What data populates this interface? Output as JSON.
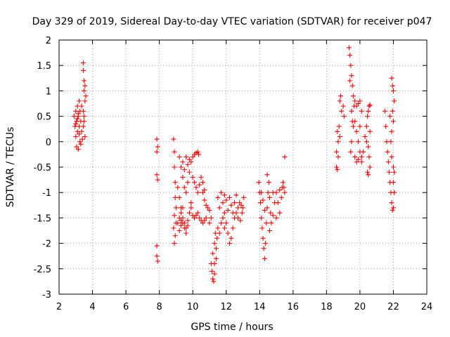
{
  "chart_data": {
    "type": "scatter",
    "title": "Day 329 of 2019, Sidereal Day-to-day VTEC variation (SDTVAR) for receiver p047",
    "xlabel": "GPS time / hours",
    "ylabel": "SDTVAR / TECUs",
    "xlim": [
      2,
      24
    ],
    "ylim": [
      -3,
      2
    ],
    "xticks": [
      "2",
      "4",
      "6",
      "8",
      "10",
      "12",
      "14",
      "16",
      "18",
      "20",
      "22",
      "24"
    ],
    "yticks": [
      "2",
      "1.5",
      "1",
      "0.5",
      "0",
      "-0.5",
      "-1",
      "-1.5",
      "-2",
      "-2.5",
      "-3"
    ],
    "grid": true,
    "marker": "+",
    "color": "#ff0000",
    "series": [
      {
        "name": "SDTVAR",
        "points": [
          [
            2.9,
            0.5
          ],
          [
            2.95,
            0.3
          ],
          [
            3.0,
            0.1
          ],
          [
            3.0,
            0.6
          ],
          [
            3.05,
            0.4
          ],
          [
            3.05,
            -0.1
          ],
          [
            3.1,
            0.2
          ],
          [
            3.1,
            0.7
          ],
          [
            3.15,
            0.5
          ],
          [
            3.15,
            -0.15
          ],
          [
            3.2,
            0.3
          ],
          [
            3.2,
            0.8
          ],
          [
            3.25,
            0.0
          ],
          [
            3.25,
            0.6
          ],
          [
            3.3,
            0.4
          ],
          [
            3.3,
            -0.05
          ],
          [
            3.35,
            0.2
          ],
          [
            3.35,
            0.7
          ],
          [
            3.0,
            0.35
          ],
          [
            3.1,
            0.45
          ],
          [
            3.2,
            0.15
          ],
          [
            3.15,
            0.55
          ],
          [
            3.45,
            1.55
          ],
          [
            3.45,
            1.4
          ],
          [
            3.5,
            1.2
          ],
          [
            3.5,
            1.0
          ],
          [
            3.55,
            0.8
          ],
          [
            3.55,
            1.1
          ],
          [
            3.45,
            0.6
          ],
          [
            3.5,
            0.4
          ],
          [
            3.55,
            0.1
          ],
          [
            3.45,
            0.3
          ],
          [
            3.6,
            0.9
          ],
          [
            3.4,
            0.05
          ],
          [
            3.5,
            0.5
          ],
          [
            7.85,
            0.05
          ],
          [
            7.85,
            -0.2
          ],
          [
            7.9,
            -0.1
          ],
          [
            7.85,
            -0.65
          ],
          [
            7.9,
            -0.75
          ],
          [
            7.85,
            -2.05
          ],
          [
            7.85,
            -2.25
          ],
          [
            7.9,
            -2.35
          ],
          [
            8.85,
            0.05
          ],
          [
            8.9,
            -0.2
          ],
          [
            8.9,
            -0.5
          ],
          [
            8.95,
            -0.8
          ],
          [
            8.95,
            -1.1
          ],
          [
            9.0,
            -1.3
          ],
          [
            9.0,
            -1.6
          ],
          [
            8.95,
            -1.85
          ],
          [
            8.9,
            -2.0
          ],
          [
            8.85,
            -1.7
          ],
          [
            8.9,
            -1.45
          ],
          [
            9.1,
            -0.9
          ],
          [
            9.2,
            -1.1
          ],
          [
            9.3,
            -1.3
          ],
          [
            9.4,
            -1.5
          ],
          [
            9.5,
            -1.6
          ],
          [
            9.6,
            -1.7
          ],
          [
            9.7,
            -1.55
          ],
          [
            9.8,
            -1.4
          ],
          [
            9.9,
            -1.2
          ],
          [
            9.1,
            -1.6
          ],
          [
            9.2,
            -1.5
          ],
          [
            9.3,
            -1.4
          ],
          [
            9.2,
            -1.75
          ],
          [
            9.3,
            -1.65
          ],
          [
            9.4,
            -1.3
          ],
          [
            9.2,
            -0.3
          ],
          [
            9.3,
            -0.5
          ],
          [
            9.4,
            -0.7
          ],
          [
            9.5,
            -0.9
          ],
          [
            9.6,
            -1.0
          ],
          [
            9.7,
            -0.8
          ],
          [
            9.8,
            -0.6
          ],
          [
            9.9,
            -0.4
          ],
          [
            10.0,
            -0.3
          ],
          [
            9.6,
            -0.3
          ],
          [
            9.7,
            -0.45
          ],
          [
            9.8,
            -0.35
          ],
          [
            9.5,
            -0.55
          ],
          [
            9.4,
            -0.4
          ],
          [
            10.0,
            -0.7
          ],
          [
            10.1,
            -0.8
          ],
          [
            10.2,
            -0.9
          ],
          [
            10.3,
            -1.0
          ],
          [
            10.4,
            -0.85
          ],
          [
            10.5,
            -0.7
          ],
          [
            10.6,
            -0.8
          ],
          [
            10.7,
            -0.95
          ],
          [
            10.1,
            -0.25
          ],
          [
            10.2,
            -0.22
          ],
          [
            10.3,
            -0.2
          ],
          [
            10.35,
            -0.25
          ],
          [
            9.9,
            -1.3
          ],
          [
            10.0,
            -1.45
          ],
          [
            10.1,
            -1.5
          ],
          [
            10.2,
            -1.45
          ],
          [
            10.3,
            -1.4
          ],
          [
            10.4,
            -1.5
          ],
          [
            10.5,
            -1.55
          ],
          [
            10.6,
            -1.6
          ],
          [
            10.7,
            -1.55
          ],
          [
            10.8,
            -1.5
          ],
          [
            9.3,
            -1.55
          ],
          [
            9.4,
            -1.6
          ],
          [
            9.5,
            -1.7
          ],
          [
            9.6,
            -1.8
          ],
          [
            9.7,
            -1.65
          ],
          [
            10.6,
            -1.0
          ],
          [
            10.7,
            -1.15
          ],
          [
            10.8,
            -1.25
          ],
          [
            10.9,
            -1.3
          ],
          [
            11.0,
            -1.35
          ],
          [
            11.1,
            -1.5
          ],
          [
            11.0,
            -1.6
          ],
          [
            11.1,
            -2.4
          ],
          [
            11.15,
            -2.55
          ],
          [
            11.2,
            -2.7
          ],
          [
            11.25,
            -2.75
          ],
          [
            11.3,
            -2.6
          ],
          [
            11.2,
            -2.2
          ],
          [
            11.3,
            -2.0
          ],
          [
            11.35,
            -1.8
          ],
          [
            11.4,
            -2.1
          ],
          [
            11.45,
            -1.9
          ],
          [
            11.5,
            -1.7
          ],
          [
            11.6,
            -1.8
          ],
          [
            11.7,
            -1.6
          ],
          [
            11.8,
            -1.5
          ],
          [
            11.9,
            -1.7
          ],
          [
            11.3,
            -2.4
          ],
          [
            11.4,
            -2.3
          ],
          [
            11.5,
            -1.1
          ],
          [
            11.6,
            -1.3
          ],
          [
            11.7,
            -1.0
          ],
          [
            11.8,
            -1.2
          ],
          [
            11.9,
            -1.4
          ],
          [
            12.0,
            -1.6
          ],
          [
            12.1,
            -1.8
          ],
          [
            12.2,
            -2.0
          ],
          [
            12.3,
            -1.9
          ],
          [
            12.4,
            -1.7
          ],
          [
            12.5,
            -1.5
          ],
          [
            12.6,
            -1.4
          ],
          [
            12.7,
            -1.3
          ],
          [
            12.8,
            -1.2
          ],
          [
            12.9,
            -1.25
          ],
          [
            13.0,
            -1.3
          ],
          [
            13.05,
            -1.1
          ],
          [
            12.95,
            -1.4
          ],
          [
            12.85,
            -1.55
          ],
          [
            12.6,
            -1.05
          ],
          [
            12.5,
            -1.2
          ],
          [
            12.3,
            -1.25
          ],
          [
            12.2,
            -1.1
          ],
          [
            12.1,
            -1.35
          ],
          [
            12.0,
            -1.15
          ],
          [
            11.9,
            -1.05
          ],
          [
            12.4,
            -1.4
          ],
          [
            12.7,
            -1.5
          ],
          [
            13.95,
            -0.8
          ],
          [
            14.0,
            -1.0
          ],
          [
            14.05,
            -1.2
          ],
          [
            14.1,
            -1.5
          ],
          [
            14.15,
            -1.7
          ],
          [
            14.2,
            -1.9
          ],
          [
            14.25,
            -2.1
          ],
          [
            14.3,
            -2.3
          ],
          [
            14.35,
            -2.0
          ],
          [
            14.4,
            -1.6
          ],
          [
            14.45,
            -1.3
          ],
          [
            14.5,
            -1.0
          ],
          [
            14.55,
            -0.8
          ],
          [
            14.45,
            -0.65
          ],
          [
            14.6,
            -1.1
          ],
          [
            14.65,
            -1.4
          ],
          [
            14.7,
            -1.6
          ],
          [
            14.8,
            -1.45
          ],
          [
            14.9,
            -1.2
          ],
          [
            15.0,
            -1.0
          ],
          [
            15.1,
            -1.2
          ],
          [
            15.2,
            -1.4
          ],
          [
            15.3,
            -1.1
          ],
          [
            15.35,
            -0.9
          ],
          [
            15.4,
            -0.8
          ],
          [
            15.45,
            -0.9
          ],
          [
            15.5,
            -1.0
          ],
          [
            15.5,
            -0.3
          ],
          [
            14.6,
            -1.75
          ],
          [
            14.8,
            -1.0
          ],
          [
            15.0,
            -1.5
          ],
          [
            15.2,
            -0.95
          ],
          [
            14.3,
            -1.35
          ],
          [
            14.2,
            -1.15
          ],
          [
            14.1,
            -1.0
          ],
          [
            18.6,
            -0.5
          ],
          [
            18.65,
            -0.55
          ],
          [
            18.6,
            -0.2
          ],
          [
            18.7,
            0.0
          ],
          [
            18.75,
            0.3
          ],
          [
            18.8,
            0.8
          ],
          [
            18.85,
            0.9
          ],
          [
            18.9,
            0.6
          ],
          [
            19.0,
            0.7
          ],
          [
            18.65,
            0.2
          ],
          [
            18.7,
            -0.3
          ],
          [
            18.8,
            0.1
          ],
          [
            19.05,
            0.5
          ],
          [
            19.35,
            1.85
          ],
          [
            19.4,
            1.7
          ],
          [
            19.45,
            1.5
          ],
          [
            19.5,
            1.3
          ],
          [
            19.55,
            1.1
          ],
          [
            19.6,
            0.9
          ],
          [
            19.4,
            1.2
          ],
          [
            19.5,
            0.6
          ],
          [
            19.6,
            0.3
          ],
          [
            19.5,
            0.0
          ],
          [
            19.45,
            -0.2
          ],
          [
            19.55,
            0.4
          ],
          [
            19.65,
            0.7
          ],
          [
            19.7,
            0.8
          ],
          [
            19.8,
            0.7
          ],
          [
            19.9,
            0.75
          ],
          [
            20.0,
            0.8
          ],
          [
            20.1,
            0.6
          ],
          [
            19.8,
            0.2
          ],
          [
            19.9,
            0.0
          ],
          [
            20.0,
            -0.2
          ],
          [
            20.1,
            -0.3
          ],
          [
            20.2,
            -0.2
          ],
          [
            19.7,
            -0.3
          ],
          [
            19.8,
            -0.4
          ],
          [
            19.9,
            -0.35
          ],
          [
            19.7,
            0.4
          ],
          [
            20.0,
            0.3
          ],
          [
            20.1,
            -0.4
          ],
          [
            20.3,
            0.1
          ],
          [
            20.4,
            0.3
          ],
          [
            20.45,
            0.5
          ],
          [
            20.5,
            0.6
          ],
          [
            20.55,
            0.7
          ],
          [
            20.6,
            0.72
          ],
          [
            20.5,
            -0.1
          ],
          [
            20.55,
            -0.3
          ],
          [
            20.6,
            -0.5
          ],
          [
            20.5,
            -0.65
          ],
          [
            20.45,
            -0.6
          ],
          [
            20.4,
            0.0
          ],
          [
            20.6,
            0.2
          ],
          [
            21.5,
            0.6
          ],
          [
            21.55,
            0.3
          ],
          [
            21.6,
            0.0
          ],
          [
            21.65,
            -0.2
          ],
          [
            21.7,
            -0.4
          ],
          [
            21.75,
            -0.6
          ],
          [
            21.8,
            -0.8
          ],
          [
            21.85,
            -1.0
          ],
          [
            21.9,
            -1.2
          ],
          [
            21.95,
            -1.35
          ],
          [
            22.0,
            -1.3
          ],
          [
            21.8,
            0.5
          ],
          [
            21.9,
            0.2
          ],
          [
            22.0,
            -0.5
          ],
          [
            22.05,
            -0.6
          ],
          [
            21.9,
            1.25
          ],
          [
            21.95,
            1.1
          ],
          [
            22.0,
            1.0
          ],
          [
            22.05,
            0.8
          ],
          [
            21.95,
            0.6
          ],
          [
            22.0,
            0.4
          ],
          [
            21.85,
            0.0
          ],
          [
            21.9,
            -0.3
          ],
          [
            22.0,
            -0.8
          ],
          [
            22.05,
            -1.0
          ]
        ]
      }
    ]
  }
}
